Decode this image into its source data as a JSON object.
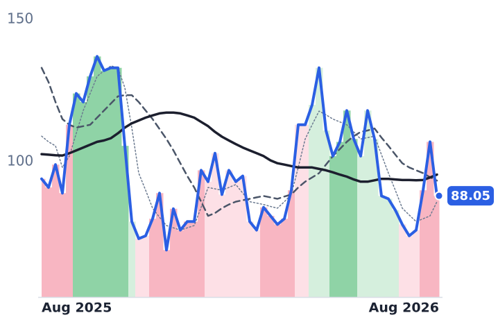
{
  "chart_data": {
    "type": "line",
    "categories": [
      "Aug 2025",
      null,
      null,
      null,
      null,
      null,
      null,
      null,
      null,
      null,
      null,
      null,
      null,
      null,
      null,
      null,
      null,
      null,
      null,
      null,
      null,
      null,
      null,
      null,
      null,
      null,
      null,
      null,
      null,
      null,
      null,
      null,
      null,
      null,
      null,
      null,
      null,
      null,
      null,
      null,
      null,
      null,
      null,
      null,
      null,
      null,
      null,
      null,
      null,
      null,
      null,
      null,
      null,
      null,
      null,
      null,
      null,
      "Aug 2026"
    ],
    "ylim": [
      52.5,
      150
    ],
    "yticks": [
      100,
      150
    ],
    "grid": false,
    "series": [
      {
        "color": "#2b5fe3",
        "width": 4,
        "dash": "solid",
        "end_label": true,
        "area": true,
        "values": [
          94,
          91,
          99,
          89,
          113,
          124,
          121,
          130,
          137,
          132,
          133,
          133,
          105.6,
          79,
          73,
          74,
          80,
          89,
          69,
          83.5,
          76,
          79,
          79,
          97,
          93,
          103,
          88.5,
          97,
          93,
          95,
          79,
          76,
          84,
          81,
          78,
          80,
          90,
          113,
          113,
          120,
          133,
          111,
          102,
          107,
          118,
          108,
          102,
          118,
          108,
          88,
          87,
          83,
          78,
          74,
          76,
          90,
          107,
          88.05
        ]
      },
      {
        "color": "#1c1f2e",
        "width": 3.5,
        "dash": "solid",
        "values": [
          102.7,
          102.5,
          102.3,
          102.2,
          103,
          104,
          105,
          106,
          107,
          107.5,
          108.3,
          110,
          112,
          113.5,
          114.5,
          115.5,
          116.3,
          117,
          117.3,
          117.3,
          117,
          116.3,
          115.5,
          114,
          112.5,
          110.5,
          108.8,
          107.5,
          106.2,
          105,
          104,
          103,
          102,
          100.5,
          99.5,
          99,
          98.5,
          98,
          98,
          98,
          97.5,
          97,
          96.3,
          95.5,
          94.8,
          93.8,
          93,
          93,
          93.5,
          94,
          94,
          93.8,
          93.6,
          93.6,
          93.5,
          93.6,
          94.5,
          95.5
        ]
      },
      {
        "color": "#4a5568",
        "width": 2.5,
        "dash": "dashed",
        "values": [
          133,
          128,
          121,
          115,
          113,
          112,
          112.5,
          113,
          115.5,
          118,
          120.5,
          123,
          123.4,
          123.4,
          121,
          118,
          115,
          111.5,
          108,
          104,
          99.5,
          95,
          91,
          86,
          81,
          82,
          83.7,
          85,
          86,
          86.5,
          87,
          87.5,
          88,
          87.5,
          87,
          87.8,
          88.5,
          91,
          93,
          94.5,
          96,
          99,
          102,
          104.5,
          107,
          109,
          110.5,
          111,
          111.7,
          108.5,
          105.6,
          102.5,
          99.5,
          98,
          97,
          96,
          94.6,
          93.4
        ]
      },
      {
        "color": "#6b7a90",
        "width": 1.5,
        "dash": "dotted",
        "values": [
          109,
          107,
          105.6,
          98,
          102,
          110,
          118,
          124,
          130,
          132,
          133.7,
          133,
          126,
          112,
          96,
          90,
          83.7,
          80.5,
          77.6,
          76.8,
          76,
          76.8,
          77.6,
          84,
          91,
          90.5,
          90,
          91,
          92,
          89,
          86,
          85.5,
          85,
          84.3,
          83.7,
          86,
          88.5,
          98,
          108,
          113,
          117.8,
          116.5,
          115,
          114,
          113,
          110.5,
          108,
          108.5,
          109,
          102.5,
          96,
          90,
          83.7,
          81.3,
          79,
          80,
          81,
          86
        ]
      }
    ],
    "area_colors": [
      "#f8b6c2",
      "#f8b6c2",
      "#f8b6c2",
      "#f8b6c2",
      "#f8b6c2",
      "#8fd3a6",
      "#8fd3a6",
      "#8fd3a6",
      "#8fd3a6",
      "#8fd3a6",
      "#8fd3a6",
      "#8fd3a6",
      "#8fd3a6",
      "#d5efdd",
      "#fde0e6",
      "#fde0e6",
      "#f8b6c2",
      "#f8b6c2",
      "#f8b6c2",
      "#f8b6c2",
      "#f8b6c2",
      "#f8b6c2",
      "#f8b6c2",
      "#f8b6c2",
      "#fde0e6",
      "#fde0e6",
      "#fde0e6",
      "#fde0e6",
      "#fde0e6",
      "#fde0e6",
      "#fde0e6",
      "#fde0e6",
      "#f8b6c2",
      "#f8b6c2",
      "#f8b6c2",
      "#f8b6c2",
      "#f8b6c2",
      "#fde0e6",
      "#fde0e6",
      "#d5efdd",
      "#d5efdd",
      "#d5efdd",
      "#8fd3a6",
      "#8fd3a6",
      "#8fd3a6",
      "#8fd3a6",
      "#d5efdd",
      "#d5efdd",
      "#d5efdd",
      "#d5efdd",
      "#d5efdd",
      "#d5efdd",
      "#fde0e6",
      "#fde0e6",
      "#fde0e6",
      "#f8b6c2",
      "#f8b6c2",
      "#f8b6c2"
    ]
  }
}
